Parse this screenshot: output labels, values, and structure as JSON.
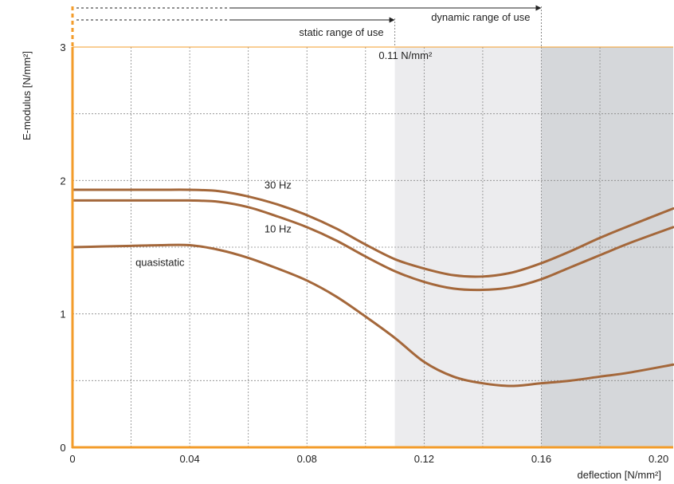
{
  "colors": {
    "axis": "#F39C2B",
    "curve": "#A4673A",
    "grid": "#888888",
    "band_light": "#ECECEE",
    "band_dark": "#D5D7DA",
    "text": "#222222"
  },
  "chart_data": {
    "type": "line",
    "xlabel": "deflection [N/mm²]",
    "ylabel": "E-modulus [N/mm²]",
    "xlim": [
      0,
      0.205
    ],
    "ylim": [
      0,
      3
    ],
    "x_ticks": [
      {
        "value": 0,
        "label": "0"
      },
      {
        "value": 0.04,
        "label": "0.04"
      },
      {
        "value": 0.08,
        "label": "0.08"
      },
      {
        "value": 0.12,
        "label": "0.12"
      },
      {
        "value": 0.16,
        "label": "0.16"
      },
      {
        "value": 0.2,
        "label": "0.20"
      }
    ],
    "y_ticks": [
      {
        "value": 0,
        "label": "0"
      },
      {
        "value": 1,
        "label": "1"
      },
      {
        "value": 2,
        "label": "2"
      },
      {
        "value": 3,
        "label": "3"
      }
    ],
    "x_grid": [
      0.02,
      0.04,
      0.06,
      0.08,
      0.1,
      0.12,
      0.14,
      0.16,
      0.18
    ],
    "y_grid": [
      0.5,
      1.0,
      1.5,
      2.0,
      2.5
    ],
    "grid": true,
    "bands": [
      {
        "from": 0.11,
        "to": 0.16,
        "shade": "light"
      },
      {
        "from": 0.16,
        "to": 0.205,
        "shade": "dark"
      }
    ],
    "ranges": [
      {
        "label": "dynamic range of use",
        "end": 0.16
      },
      {
        "label": "static range of use",
        "end": 0.11
      }
    ],
    "annotations": [
      {
        "text": "0.11 N/mm²",
        "x": 0.1045,
        "y": 2.91
      }
    ],
    "series": [
      {
        "name": "30 Hz",
        "label_at": {
          "x": 0.0655,
          "y": 1.94
        },
        "x": [
          0,
          0.01,
          0.02,
          0.03,
          0.04,
          0.05,
          0.06,
          0.07,
          0.08,
          0.09,
          0.1,
          0.11,
          0.12,
          0.13,
          0.14,
          0.15,
          0.16,
          0.17,
          0.18,
          0.19,
          0.205
        ],
        "values": [
          1.93,
          1.93,
          1.93,
          1.93,
          1.93,
          1.92,
          1.88,
          1.82,
          1.74,
          1.64,
          1.52,
          1.41,
          1.34,
          1.29,
          1.28,
          1.31,
          1.38,
          1.47,
          1.57,
          1.66,
          1.79
        ]
      },
      {
        "name": "10 Hz",
        "label_at": {
          "x": 0.0655,
          "y": 1.61
        },
        "x": [
          0,
          0.01,
          0.02,
          0.03,
          0.04,
          0.05,
          0.06,
          0.07,
          0.08,
          0.09,
          0.1,
          0.11,
          0.12,
          0.13,
          0.14,
          0.15,
          0.16,
          0.17,
          0.18,
          0.19,
          0.205
        ],
        "values": [
          1.85,
          1.85,
          1.85,
          1.85,
          1.85,
          1.84,
          1.8,
          1.73,
          1.65,
          1.55,
          1.43,
          1.32,
          1.24,
          1.19,
          1.18,
          1.2,
          1.26,
          1.35,
          1.44,
          1.53,
          1.65
        ]
      },
      {
        "name": "quasistatic",
        "label_at": {
          "x": 0.0215,
          "y": 1.36
        },
        "x": [
          0,
          0.01,
          0.02,
          0.03,
          0.04,
          0.05,
          0.06,
          0.07,
          0.08,
          0.09,
          0.1,
          0.11,
          0.12,
          0.13,
          0.14,
          0.15,
          0.16,
          0.17,
          0.18,
          0.19,
          0.205
        ],
        "values": [
          1.5,
          1.505,
          1.51,
          1.515,
          1.515,
          1.48,
          1.42,
          1.34,
          1.25,
          1.13,
          0.98,
          0.82,
          0.64,
          0.53,
          0.48,
          0.46,
          0.48,
          0.5,
          0.53,
          0.56,
          0.62
        ]
      }
    ]
  }
}
